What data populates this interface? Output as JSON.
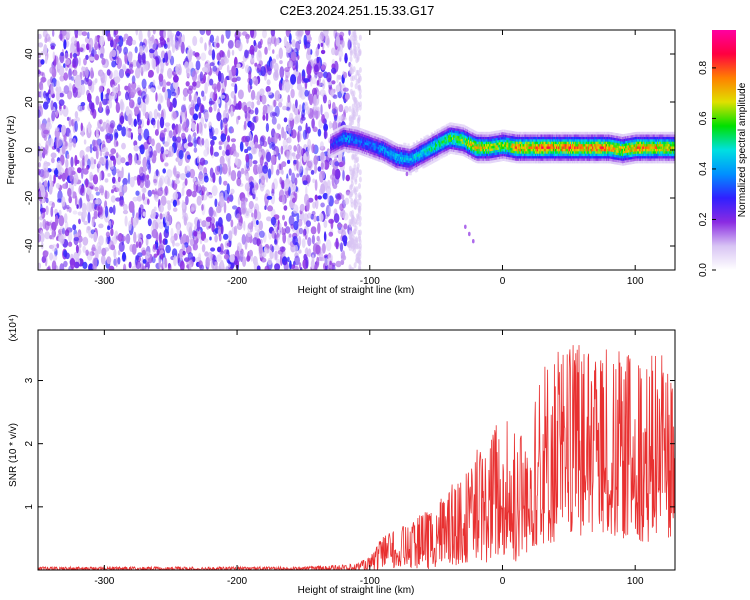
{
  "title": "C2E3.2024.251.15.33.G17",
  "chart_data": [
    {
      "type": "heatmap",
      "panel": "top",
      "xlabel": "Height of straight line (km)",
      "ylabel": "Frequency (Hz)",
      "xlim": [
        -350,
        130
      ],
      "ylim": [
        -50,
        50
      ],
      "xticks": [
        -300,
        -200,
        -100,
        0,
        100
      ],
      "yticks": [
        -40,
        -20,
        0,
        20,
        40
      ],
      "colorbar": {
        "label": "Normalized spectral amplitude",
        "range": [
          0.0,
          0.95
        ],
        "ticks": [
          0.0,
          0.2,
          0.4,
          0.6,
          0.8
        ],
        "colormap": [
          "#ffffff",
          "#d8c4f4",
          "#8a2be2",
          "#3020ff",
          "#0090ff",
          "#00e0e0",
          "#00e000",
          "#e0e000",
          "#ff8000",
          "#ff0040",
          "#ff00a0"
        ]
      },
      "noise_region": {
        "x_range": [
          -350,
          -115
        ],
        "freq_range": [
          -50,
          50
        ]
      },
      "signal_track": {
        "x": [
          -130,
          -120,
          -110,
          -100,
          -90,
          -80,
          -70,
          -60,
          -50,
          -40,
          -30,
          -20,
          -10,
          0,
          10,
          20,
          30,
          40,
          50,
          60,
          70,
          80,
          90,
          100,
          110,
          120,
          130
        ],
        "freq": [
          2,
          5,
          4,
          2,
          0,
          -3,
          -4,
          -1,
          2,
          5,
          4,
          1,
          1,
          2,
          1,
          1,
          1,
          1,
          1,
          1,
          1,
          1,
          0,
          1,
          1,
          1,
          1
        ],
        "peak_amplitude": [
          0.3,
          0.45,
          0.4,
          0.4,
          0.45,
          0.5,
          0.5,
          0.55,
          0.6,
          0.65,
          0.7,
          0.8,
          0.75,
          0.7,
          0.85,
          0.85,
          0.9,
          0.85,
          0.9,
          0.85,
          0.9,
          0.85,
          0.8,
          0.85,
          0.85,
          0.8,
          0.8
        ]
      }
    },
    {
      "type": "line",
      "panel": "bottom",
      "xlabel": "Height of straight line (km)",
      "ylabel": "SNR (10 * v/v)",
      "yscale_label": "(x10⁴)",
      "xlim": [
        -350,
        130
      ],
      "ylim": [
        0,
        3.8
      ],
      "xticks": [
        -300,
        -200,
        -100,
        0,
        100
      ],
      "yticks": [
        1,
        2,
        3
      ],
      "color": "#e83030",
      "series": [
        {
          "x": [
            -350,
            -300,
            -250,
            -200,
            -150,
            -110,
            -100,
            -90,
            -80,
            -70,
            -60,
            -50,
            -40,
            -30,
            -20,
            -10,
            0,
            10,
            20,
            30,
            40,
            50,
            60,
            70,
            80,
            90,
            100,
            110,
            120,
            130
          ],
          "mean": [
            0.02,
            0.02,
            0.02,
            0.02,
            0.02,
            0.04,
            0.08,
            0.2,
            0.3,
            0.3,
            0.35,
            0.5,
            0.6,
            0.65,
            0.8,
            0.9,
            1.2,
            1.0,
            1.0,
            1.6,
            1.7,
            1.75,
            1.8,
            1.8,
            1.7,
            1.75,
            1.7,
            1.65,
            1.7,
            1.6
          ],
          "max": [
            0.05,
            0.05,
            0.05,
            0.05,
            0.05,
            0.1,
            0.2,
            0.55,
            0.65,
            0.75,
            0.9,
            1.0,
            1.35,
            1.4,
            1.9,
            2.05,
            2.55,
            2.3,
            2.3,
            3.4,
            3.5,
            3.6,
            3.55,
            3.65,
            3.5,
            3.5,
            3.4,
            3.4,
            3.45,
            3.3
          ],
          "min": [
            0.0,
            0.0,
            0.0,
            0.0,
            0.0,
            0.0,
            0.0,
            0.0,
            0.0,
            0.05,
            0.0,
            0.0,
            0.05,
            0.1,
            0.15,
            0.1,
            0.2,
            0.1,
            0.3,
            0.4,
            0.4,
            0.5,
            0.5,
            0.5,
            0.5,
            0.5,
            0.5,
            0.4,
            0.5,
            0.5
          ]
        }
      ]
    }
  ]
}
